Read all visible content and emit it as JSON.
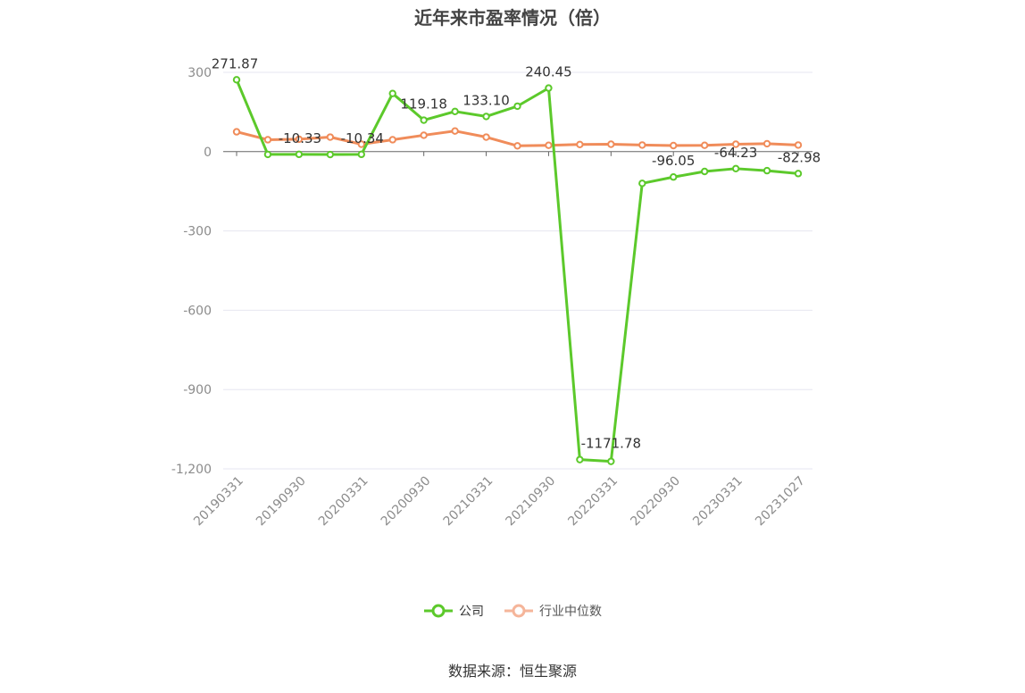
{
  "title": "近年来市盈率情况（倍）",
  "source": "数据来源：恒生聚源",
  "colors": {
    "company": "#5cc92b",
    "industry": "#f08c5a",
    "industry_legend": "#f5b59a",
    "grid": "#e6e6f0",
    "axis": "#666666"
  },
  "legend": [
    {
      "name": "公司",
      "color": "#5cc92b"
    },
    {
      "name": "行业中位数",
      "color": "#f5b59a"
    }
  ],
  "chart_data": {
    "type": "line",
    "title": "近年来市盈率情况（倍）",
    "xlabel": "",
    "ylabel": "",
    "ylim": [
      -1200,
      300
    ],
    "yticks": [
      300,
      0,
      -300,
      -600,
      -900,
      -1200
    ],
    "ytick_labels": [
      "300",
      "0",
      "-300",
      "-600",
      "-900",
      "-1,200"
    ],
    "grid": true,
    "legend_position": "bottom",
    "xtick_labels": [
      "20190331",
      "20190930",
      "20200331",
      "20200930",
      "20210331",
      "20210930",
      "20220331",
      "20220930",
      "20230331",
      "20231027"
    ],
    "x": [
      "20190331",
      "20190630",
      "20190930",
      "20191231",
      "20200331",
      "20200630",
      "20200930",
      "20201231",
      "20210331",
      "20210630",
      "20210930",
      "20211231",
      "20220331",
      "20220630",
      "20220930",
      "20221231",
      "20230331",
      "20230630",
      "20231027"
    ],
    "series": [
      {
        "name": "公司",
        "values": [
          271.87,
          -10.5,
          -10.33,
          -11,
          -10.34,
          220,
          119.18,
          152,
          133.1,
          172,
          240.45,
          -1165,
          -1171.78,
          -120,
          -96.05,
          -75,
          -64.23,
          -72,
          -82.98
        ]
      },
      {
        "name": "行业中位数",
        "values": [
          75,
          45,
          47,
          55,
          28,
          45,
          62,
          78,
          55,
          22,
          24,
          27,
          28,
          25,
          23,
          24,
          28,
          30,
          25
        ]
      }
    ],
    "data_labels": [
      {
        "series": 0,
        "index": 0,
        "text": "271.87",
        "dx": -2,
        "dy": -13
      },
      {
        "series": 0,
        "index": 2,
        "text": "-10.33",
        "dx": 1,
        "dy": -13
      },
      {
        "series": 0,
        "index": 4,
        "text": "-10.34",
        "dx": 1,
        "dy": -13
      },
      {
        "series": 0,
        "index": 6,
        "text": "119.18",
        "dx": 0,
        "dy": -13
      },
      {
        "series": 0,
        "index": 8,
        "text": "133.10",
        "dx": 0,
        "dy": -13
      },
      {
        "series": 0,
        "index": 10,
        "text": "240.45",
        "dx": 0,
        "dy": -13
      },
      {
        "series": 0,
        "index": 12,
        "text": "-1171.78",
        "dx": 0,
        "dy": -15
      },
      {
        "series": 0,
        "index": 14,
        "text": "-96.05",
        "dx": 0,
        "dy": -13
      },
      {
        "series": 0,
        "index": 16,
        "text": "-64.23",
        "dx": 0,
        "dy": -13
      },
      {
        "series": 0,
        "index": 18,
        "text": "-82.98",
        "dx": 1,
        "dy": -13
      }
    ]
  }
}
